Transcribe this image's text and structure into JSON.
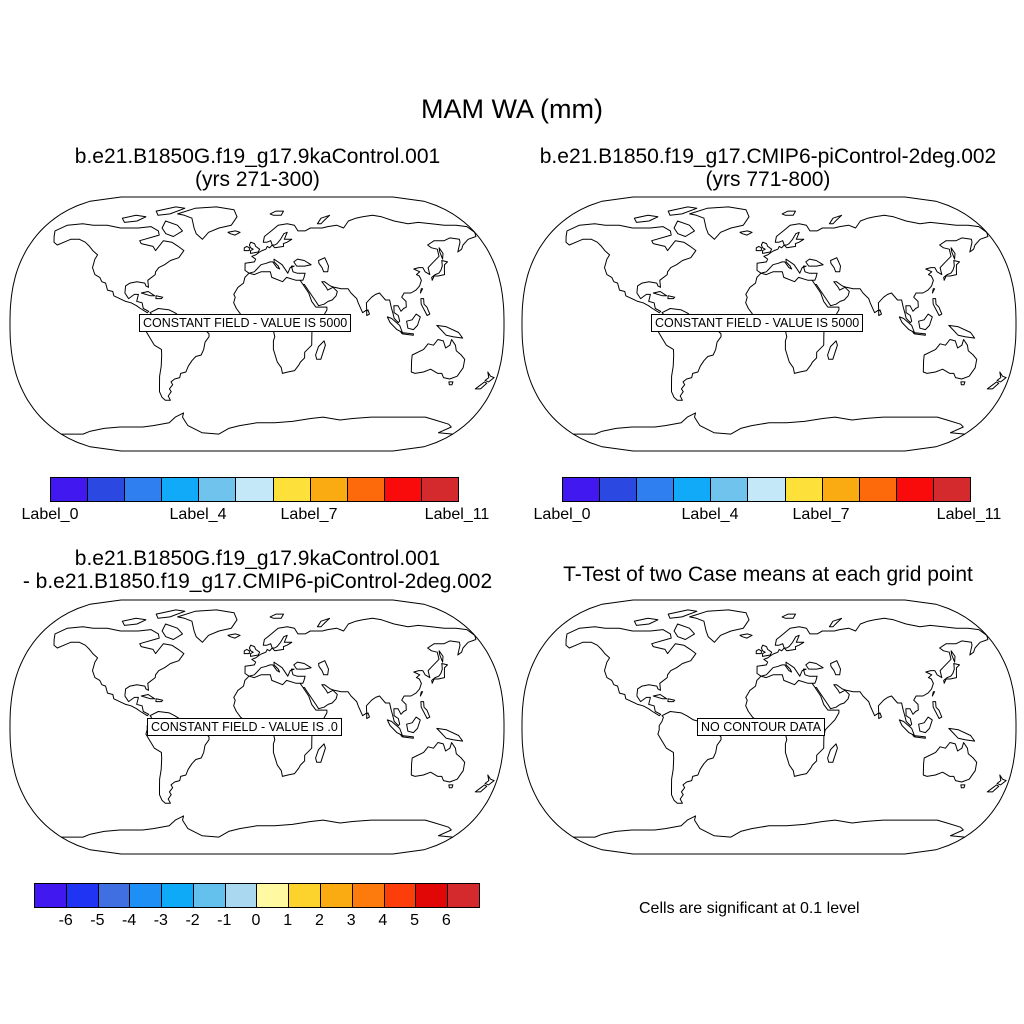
{
  "main_title": "MAM WA (mm)",
  "panels": [
    {
      "title_line1": "b.e21.B1850G.f19_g17.9kaControl.001",
      "title_line2": "(yrs 271-300)",
      "message": "CONSTANT FIELD - VALUE IS 5000"
    },
    {
      "title_line1": "b.e21.B1850.f19_g17.CMIP6-piControl-2deg.002",
      "title_line2": "(yrs 771-800)",
      "message": "CONSTANT FIELD - VALUE IS 5000"
    },
    {
      "title_line1": "b.e21.B1850G.f19_g17.9kaControl.001",
      "title_line2": "- b.e21.B1850.f19_g17.CMIP6-piControl-2deg.002",
      "message": "CONSTANT FIELD - VALUE IS .0"
    },
    {
      "title_line1": "T-Test of two Case means at each grid point",
      "message": "NO CONTOUR DATA"
    }
  ],
  "colorbar_case": {
    "colors": [
      "#4218f0",
      "#2b48e0",
      "#2f7ff0",
      "#10aaf8",
      "#6fc3ec",
      "#c5e8f8",
      "#fde03a",
      "#fbab12",
      "#fc6a0c",
      "#f90b0b",
      "#d42a2d"
    ],
    "labels": [
      "Label_0",
      "Label_4",
      "Label_7",
      "Label_11"
    ]
  },
  "colorbar_diff": {
    "colors": [
      "#4218f0",
      "#1f35f3",
      "#3f6fe0",
      "#1e8ff5",
      "#0eaaf8",
      "#64c0ed",
      "#a9d8f0",
      "#fff9a2",
      "#fcd22c",
      "#fbab12",
      "#fc7b0c",
      "#fc3e0b",
      "#e10707",
      "#d42a2d"
    ],
    "labels": [
      "-6",
      "-5",
      "-4",
      "-3",
      "-2",
      "-1",
      "0",
      "1",
      "2",
      "3",
      "4",
      "5",
      "6"
    ]
  },
  "significance_note": "Cells are significant at 0.1 level"
}
